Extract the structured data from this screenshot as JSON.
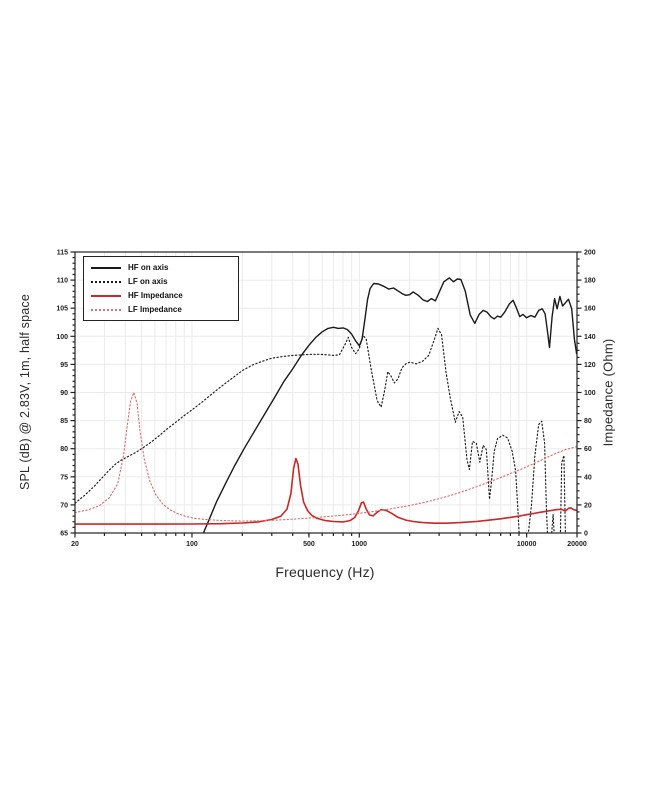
{
  "figure": {
    "xlabel": "Frequency (Hz)",
    "ylabel_left": "SPL (dB) @ 2.83V, 1m, half space",
    "ylabel_right": "Impedance (Ohm)"
  },
  "colors": {
    "black_trace": "#1a1a1a",
    "red_solid": "#cc2626",
    "red_dotted": "#dd6f6f",
    "grid": "#ebebeb",
    "axis": "#222222"
  },
  "chart_data": {
    "type": "line",
    "title": "",
    "xlabel": "Frequency (Hz)",
    "ylabel_left": "SPL (dB) @ 2.83V, 1m, half space",
    "ylabel_right": "Impedance (Ohm)",
    "x_scale": "log",
    "xlim": [
      20,
      20000
    ],
    "ylim_left": [
      65,
      115
    ],
    "ylim_right": [
      0,
      200
    ],
    "x_tick_values": [
      20,
      100,
      500,
      1000,
      10000,
      20000
    ],
    "x_tick_labels": [
      "20",
      "100",
      "500",
      "1000",
      "10000",
      "20000"
    ],
    "y_ticks_left": [
      65,
      70,
      75,
      80,
      85,
      90,
      95,
      100,
      105,
      110,
      115
    ],
    "y_ticks_right": [
      0,
      20,
      40,
      60,
      80,
      100,
      120,
      140,
      160,
      180,
      200
    ],
    "grid": true,
    "legend_position": "upper-left",
    "legend": [
      {
        "label": "HF on axis",
        "style": "solid",
        "color": "#1a1a1a"
      },
      {
        "label": "LF on axis",
        "style": "dotted",
        "color": "#1a1a1a"
      },
      {
        "label": "HF Impedance",
        "style": "solid",
        "color": "#cc2626"
      },
      {
        "label": "LF Impedance",
        "style": "dotted",
        "color": "#dd6f6f"
      }
    ],
    "series": [
      {
        "name": "HF on axis",
        "axis": "left",
        "units": "dB SPL",
        "color": "#1a1a1a",
        "style": "solid",
        "width": 1.4,
        "points": [
          [
            117,
            65
          ],
          [
            125,
            67
          ],
          [
            140,
            70.5
          ],
          [
            160,
            74
          ],
          [
            180,
            77
          ],
          [
            205,
            80
          ],
          [
            235,
            83
          ],
          [
            270,
            86
          ],
          [
            310,
            89
          ],
          [
            355,
            92
          ],
          [
            400,
            94.2
          ],
          [
            450,
            96.6
          ],
          [
            500,
            98.4
          ],
          [
            550,
            99.8
          ],
          [
            600,
            100.8
          ],
          [
            650,
            101.4
          ],
          [
            700,
            101.6
          ],
          [
            750,
            101.4
          ],
          [
            800,
            101.5
          ],
          [
            850,
            101.2
          ],
          [
            900,
            100.4
          ],
          [
            950,
            99.2
          ],
          [
            1000,
            98.3
          ],
          [
            1040,
            99.5
          ],
          [
            1080,
            103
          ],
          [
            1120,
            106.5
          ],
          [
            1160,
            108.5
          ],
          [
            1220,
            109.4
          ],
          [
            1300,
            109.3
          ],
          [
            1400,
            108.9
          ],
          [
            1500,
            108.4
          ],
          [
            1600,
            108.6
          ],
          [
            1700,
            108.1
          ],
          [
            1800,
            107.6
          ],
          [
            1900,
            107.3
          ],
          [
            2000,
            107.4
          ],
          [
            2100,
            107.9
          ],
          [
            2250,
            107.3
          ],
          [
            2400,
            106.5
          ],
          [
            2550,
            106.2
          ],
          [
            2700,
            106.7
          ],
          [
            2850,
            106.3
          ],
          [
            3000,
            107.8
          ],
          [
            3200,
            109.7
          ],
          [
            3450,
            110.4
          ],
          [
            3650,
            109.7
          ],
          [
            3850,
            110.2
          ],
          [
            4050,
            110.1
          ],
          [
            4300,
            108
          ],
          [
            4600,
            103.8
          ],
          [
            4900,
            102.3
          ],
          [
            5200,
            103.9
          ],
          [
            5500,
            104.6
          ],
          [
            5800,
            104.3
          ],
          [
            6100,
            103.5
          ],
          [
            6400,
            103.1
          ],
          [
            6700,
            103.6
          ],
          [
            7000,
            103.4
          ],
          [
            7400,
            104.3
          ],
          [
            7900,
            105.8
          ],
          [
            8300,
            106.4
          ],
          [
            8700,
            105
          ],
          [
            9100,
            103.5
          ],
          [
            9500,
            103.9
          ],
          [
            10000,
            103.3
          ],
          [
            10600,
            103.7
          ],
          [
            11200,
            103.4
          ],
          [
            11800,
            104.6
          ],
          [
            12400,
            104.9
          ],
          [
            12900,
            104
          ],
          [
            13300,
            101
          ],
          [
            13700,
            98
          ],
          [
            14200,
            103.5
          ],
          [
            14700,
            106.7
          ],
          [
            15200,
            104.9
          ],
          [
            15800,
            107.1
          ],
          [
            16400,
            105.4
          ],
          [
            17000,
            105.9
          ],
          [
            17800,
            106.6
          ],
          [
            18600,
            104.9
          ],
          [
            19300,
            99.5
          ],
          [
            19900,
            96.9
          ]
        ]
      },
      {
        "name": "LF on axis",
        "axis": "left",
        "units": "dB SPL",
        "color": "#1a1a1a",
        "style": "dotted",
        "width": 1.15,
        "points": [
          [
            20,
            70.3
          ],
          [
            23,
            71.8
          ],
          [
            26,
            73.3
          ],
          [
            29,
            74.8
          ],
          [
            32,
            76.2
          ],
          [
            35,
            77.3
          ],
          [
            38,
            78
          ],
          [
            42,
            78.7
          ],
          [
            46,
            79.3
          ],
          [
            50,
            80
          ],
          [
            56,
            81
          ],
          [
            63,
            82.2
          ],
          [
            71,
            83.5
          ],
          [
            80,
            84.7
          ],
          [
            90,
            85.9
          ],
          [
            100,
            86.9
          ],
          [
            115,
            88.3
          ],
          [
            130,
            89.6
          ],
          [
            150,
            91.1
          ],
          [
            175,
            92.6
          ],
          [
            200,
            93.9
          ],
          [
            230,
            94.9
          ],
          [
            260,
            95.5
          ],
          [
            300,
            96.1
          ],
          [
            350,
            96.4
          ],
          [
            400,
            96.6
          ],
          [
            460,
            96.7
          ],
          [
            520,
            96.8
          ],
          [
            580,
            96.8
          ],
          [
            640,
            96.7
          ],
          [
            700,
            96.6
          ],
          [
            760,
            96.7
          ],
          [
            820,
            98.5
          ],
          [
            860,
            99.8
          ],
          [
            900,
            98
          ],
          [
            950,
            96.9
          ],
          [
            1000,
            97.8
          ],
          [
            1050,
            100.2
          ],
          [
            1100,
            99.5
          ],
          [
            1180,
            94
          ],
          [
            1280,
            88.5
          ],
          [
            1350,
            87.4
          ],
          [
            1420,
            90.5
          ],
          [
            1480,
            93.7
          ],
          [
            1540,
            93
          ],
          [
            1620,
            91.7
          ],
          [
            1700,
            92.4
          ],
          [
            1800,
            94.4
          ],
          [
            1900,
            95.1
          ],
          [
            2000,
            95.4
          ],
          [
            2200,
            95.1
          ],
          [
            2400,
            95.6
          ],
          [
            2600,
            96.6
          ],
          [
            2800,
            99.3
          ],
          [
            2950,
            101.4
          ],
          [
            3100,
            100.3
          ],
          [
            3300,
            93.5
          ],
          [
            3500,
            89
          ],
          [
            3750,
            84.7
          ],
          [
            3950,
            86.6
          ],
          [
            4150,
            85.6
          ],
          [
            4400,
            78
          ],
          [
            4550,
            76.3
          ],
          [
            4750,
            81.3
          ],
          [
            5000,
            81
          ],
          [
            5250,
            77.6
          ],
          [
            5500,
            80.6
          ],
          [
            5750,
            79.8
          ],
          [
            6000,
            71
          ],
          [
            6150,
            73.8
          ],
          [
            6400,
            79.5
          ],
          [
            6700,
            81.8
          ],
          [
            7200,
            82.4
          ],
          [
            7700,
            81.9
          ],
          [
            8200,
            79.5
          ],
          [
            8600,
            76
          ],
          [
            8900,
            68
          ],
          [
            9100,
            63
          ],
          [
            9600,
            63.5
          ],
          [
            10200,
            64.5
          ],
          [
            10700,
            70
          ],
          [
            11200,
            78.8
          ],
          [
            11800,
            84.3
          ],
          [
            12300,
            84.9
          ],
          [
            12800,
            81
          ],
          [
            13100,
            70
          ],
          [
            13400,
            63
          ],
          [
            14000,
            63.5
          ],
          [
            14400,
            68.3
          ],
          [
            14700,
            63.5
          ],
          [
            15300,
            63
          ],
          [
            15900,
            63.5
          ],
          [
            16200,
            77.5
          ],
          [
            16700,
            78.8
          ],
          [
            17100,
            63
          ],
          [
            17600,
            63.5
          ],
          [
            18200,
            63
          ],
          [
            19000,
            63.5
          ],
          [
            19800,
            63
          ]
        ]
      },
      {
        "name": "HF Impedance",
        "axis": "right",
        "units": "Ohm",
        "color": "#cc2626",
        "style": "solid",
        "width": 1.6,
        "points": [
          [
            20,
            6.3
          ],
          [
            60,
            6.3
          ],
          [
            100,
            6.4
          ],
          [
            150,
            6.6
          ],
          [
            200,
            7.1
          ],
          [
            250,
            7.9
          ],
          [
            300,
            9.6
          ],
          [
            340,
            12
          ],
          [
            370,
            17
          ],
          [
            390,
            28
          ],
          [
            405,
            46
          ],
          [
            418,
            53
          ],
          [
            430,
            49
          ],
          [
            445,
            34
          ],
          [
            465,
            22
          ],
          [
            490,
            16
          ],
          [
            520,
            12.5
          ],
          [
            560,
            10.4
          ],
          [
            620,
            9
          ],
          [
            700,
            8.2
          ],
          [
            800,
            7.9
          ],
          [
            880,
            8.8
          ],
          [
            940,
            11
          ],
          [
            990,
            16
          ],
          [
            1030,
            21.5
          ],
          [
            1060,
            22
          ],
          [
            1100,
            17
          ],
          [
            1150,
            12.8
          ],
          [
            1210,
            12.2
          ],
          [
            1280,
            14.8
          ],
          [
            1350,
            16.6
          ],
          [
            1450,
            16.1
          ],
          [
            1560,
            14
          ],
          [
            1700,
            11.2
          ],
          [
            1900,
            9.2
          ],
          [
            2100,
            8.2
          ],
          [
            2400,
            7.4
          ],
          [
            2800,
            7
          ],
          [
            3300,
            7
          ],
          [
            4000,
            7.4
          ],
          [
            5000,
            8.2
          ],
          [
            6000,
            9.2
          ],
          [
            7000,
            10.1
          ],
          [
            8000,
            11.1
          ],
          [
            9000,
            12
          ],
          [
            10000,
            13
          ],
          [
            11000,
            13.9
          ],
          [
            12000,
            14.7
          ],
          [
            13000,
            15.4
          ],
          [
            14000,
            16
          ],
          [
            15000,
            16.6
          ],
          [
            16000,
            16.9
          ],
          [
            16700,
            16.1
          ],
          [
            17200,
            15.9
          ],
          [
            17800,
            17.6
          ],
          [
            18400,
            17.9
          ],
          [
            19100,
            16.6
          ],
          [
            20000,
            16.1
          ]
        ]
      },
      {
        "name": "LF Impedance",
        "axis": "right",
        "units": "Ohm",
        "color": "#dd6f6f",
        "style": "dotted",
        "width": 1.15,
        "points": [
          [
            20,
            14.5
          ],
          [
            24,
            16.5
          ],
          [
            28,
            19.5
          ],
          [
            32,
            25
          ],
          [
            36,
            35
          ],
          [
            39,
            55
          ],
          [
            41,
            76
          ],
          [
            43,
            94
          ],
          [
            45,
            100
          ],
          [
            47,
            92
          ],
          [
            49,
            72
          ],
          [
            52,
            52
          ],
          [
            56,
            37
          ],
          [
            61,
            27
          ],
          [
            67,
            20.5
          ],
          [
            74,
            16.5
          ],
          [
            82,
            13.8
          ],
          [
            92,
            11.8
          ],
          [
            102,
            10.6
          ],
          [
            120,
            9.6
          ],
          [
            150,
            8.9
          ],
          [
            200,
            8.5
          ],
          [
            250,
            8.7
          ],
          [
            310,
            9.1
          ],
          [
            400,
            9.8
          ],
          [
            500,
            10.6
          ],
          [
            620,
            11.5
          ],
          [
            750,
            12.4
          ],
          [
            900,
            13.4
          ],
          [
            1100,
            14.6
          ],
          [
            1350,
            16.1
          ],
          [
            1650,
            17.8
          ],
          [
            2000,
            19.6
          ],
          [
            2500,
            22
          ],
          [
            3100,
            24.9
          ],
          [
            3800,
            28
          ],
          [
            4600,
            31.3
          ],
          [
            5500,
            34.7
          ],
          [
            6600,
            38.3
          ],
          [
            7800,
            41.8
          ],
          [
            9200,
            45.3
          ],
          [
            10800,
            48.9
          ],
          [
            12600,
            52.6
          ],
          [
            14700,
            56.3
          ],
          [
            17000,
            59.3
          ],
          [
            20000,
            61.5
          ]
        ]
      }
    ]
  }
}
